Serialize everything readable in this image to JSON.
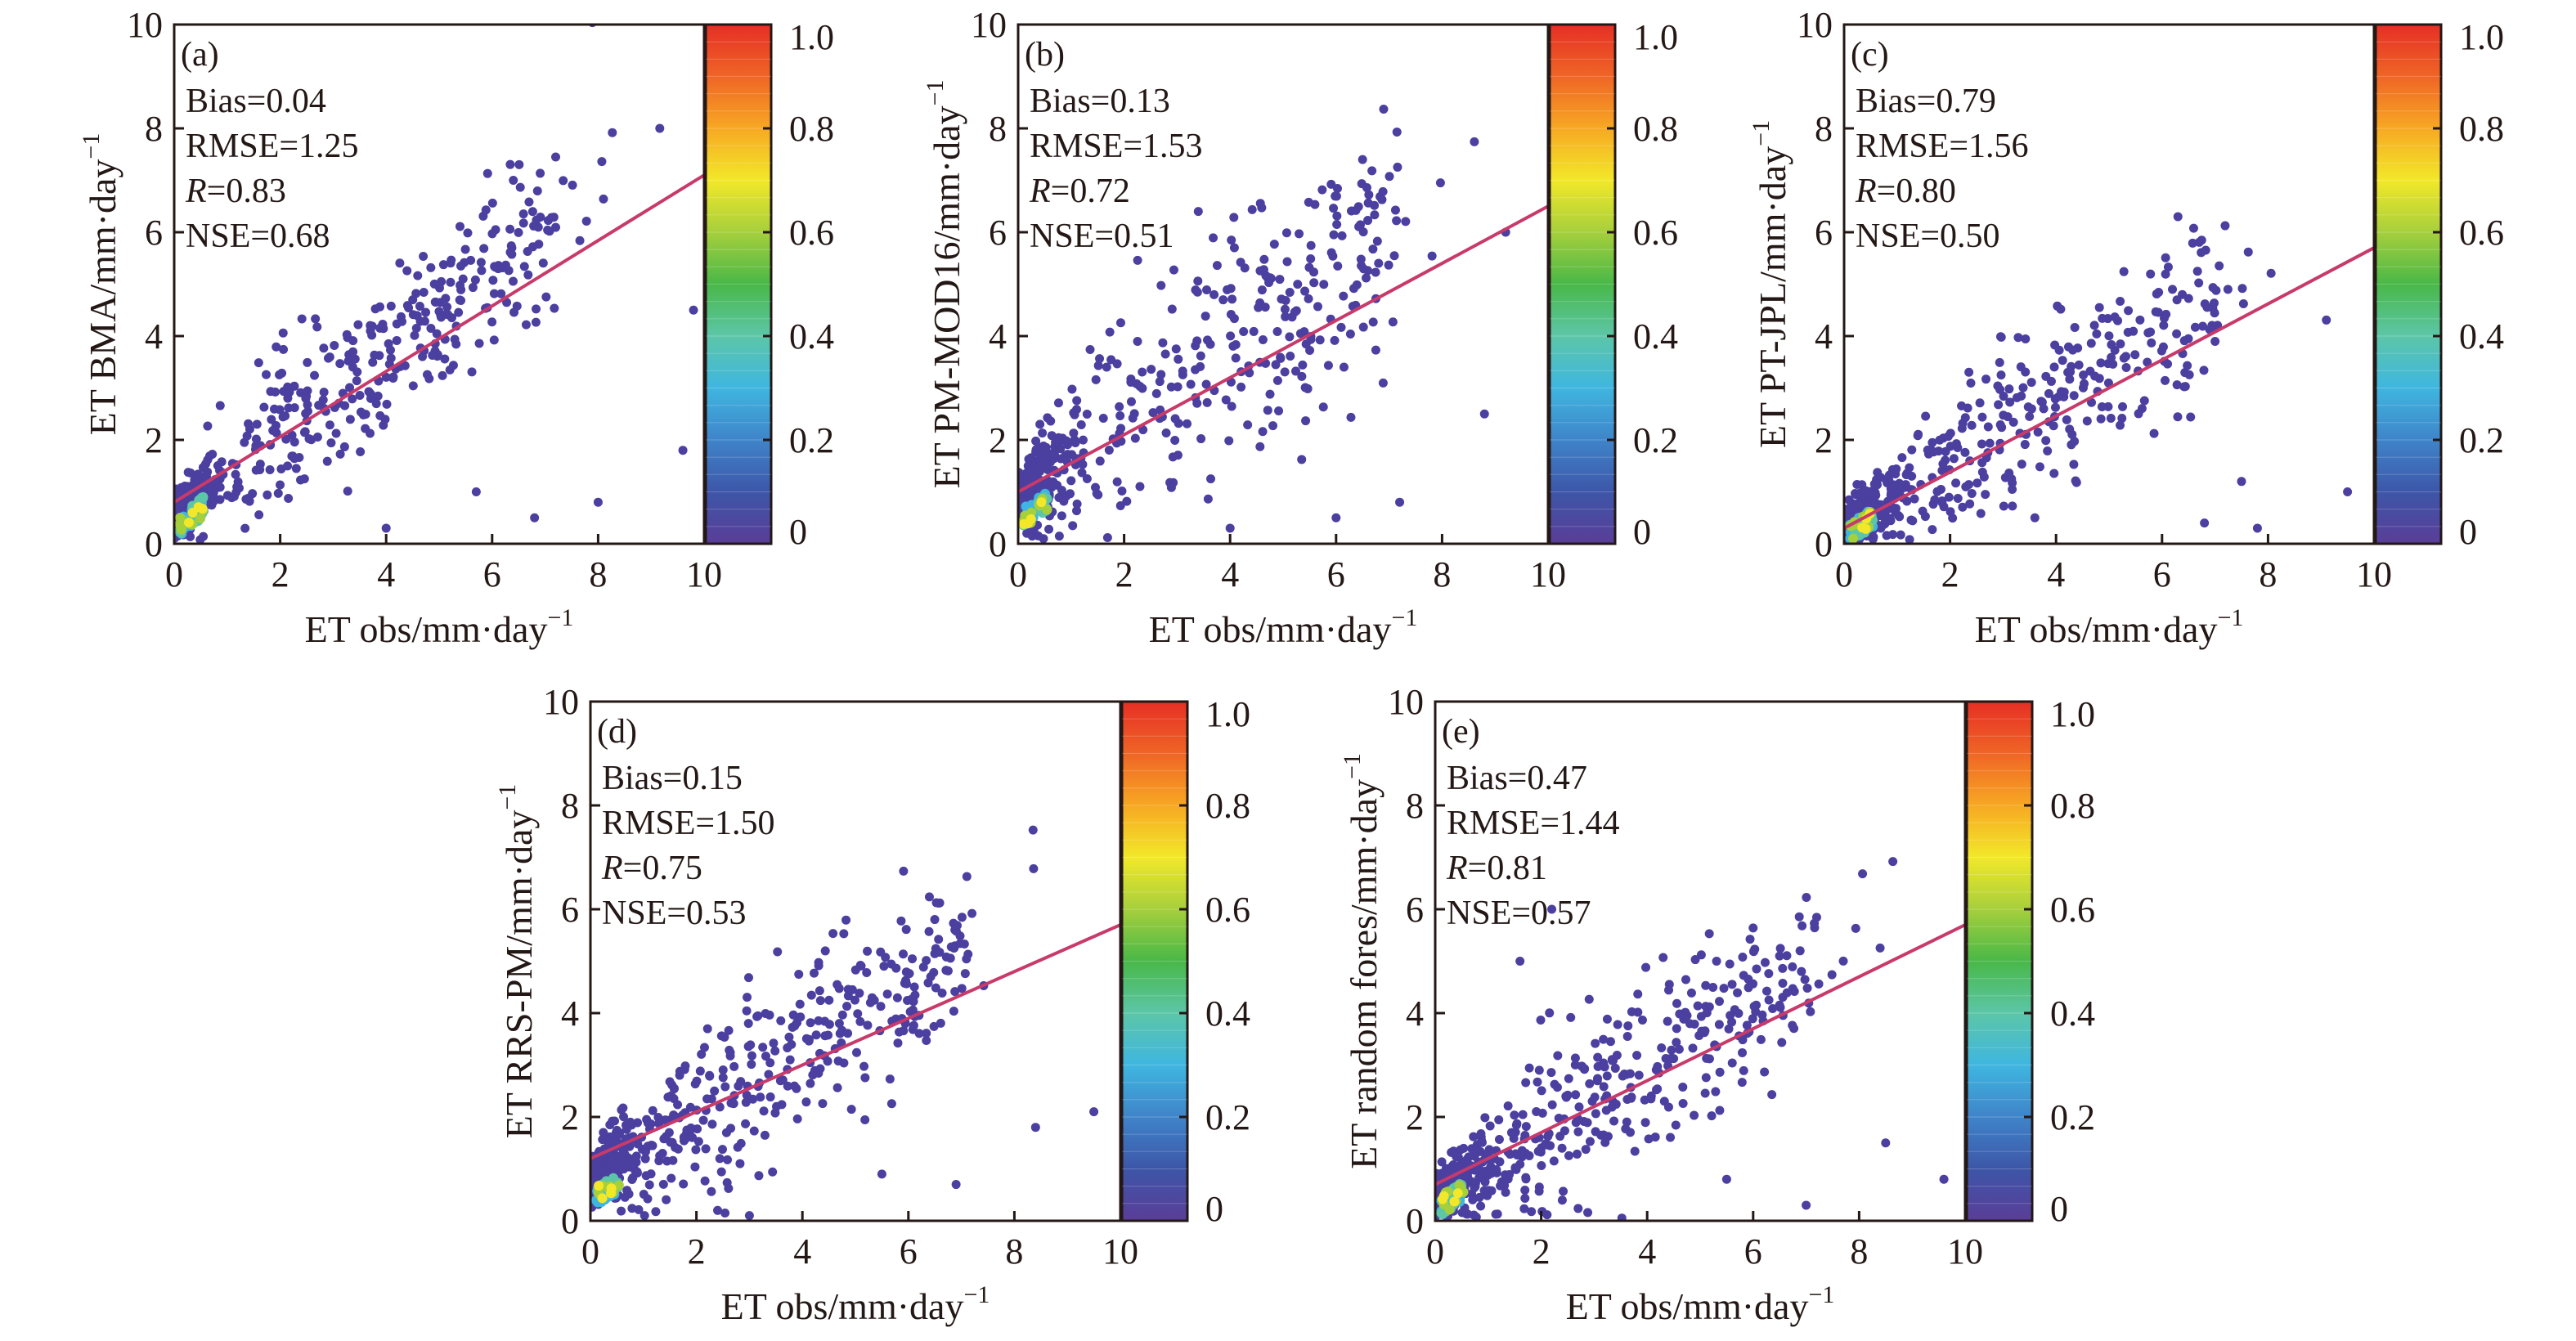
{
  "figure": {
    "x_axis_label": "ET obs/mm·day",
    "unit_exponent": "−1",
    "tick_labels": [
      "0",
      "2",
      "4",
      "6",
      "8",
      "10"
    ],
    "colorbar_labels": [
      "0",
      "0.2",
      "0.4",
      "0.6",
      "0.8",
      "1.0"
    ],
    "colors": {
      "points": "#4b3fa0",
      "fit_line": "#c83a6a",
      "axis": "#231815",
      "colormap": [
        "#5a3d98",
        "#3d56a8",
        "#3f84c9",
        "#3fb6e0",
        "#5cc6a8",
        "#49b848",
        "#a6cf3c",
        "#f2e829",
        "#f7a823",
        "#ef6526",
        "#e62f25"
      ]
    }
  },
  "chart_data": [
    {
      "type": "scatter",
      "panel": "(a)",
      "ylabel": "ET BMA/mm·day",
      "xlabel": "ET obs/mm·day",
      "xlim": [
        0,
        10
      ],
      "ylim": [
        0,
        10
      ],
      "colorbar_range": [
        0,
        1.0
      ],
      "stats": {
        "bias": "Bias=0.04",
        "rmse": "RMSE=1.25",
        "r_sym": "R",
        "r_val": "=0.83",
        "nse": "NSE=0.68"
      },
      "fit_line": {
        "x": [
          0,
          10
        ],
        "y": [
          0.8,
          7.1
        ]
      },
      "point_cloud": {
        "n": 520,
        "slope": 0.8,
        "intercept": 0.55,
        "spread": 0.85,
        "seed": 11
      },
      "outliers": [
        [
          6.4,
          7.0
        ],
        [
          9.6,
          1.8
        ],
        [
          6.8,
          0.5
        ],
        [
          4.0,
          0.3
        ],
        [
          5.7,
          1.0
        ],
        [
          8.0,
          0.8
        ],
        [
          9.8,
          4.5
        ]
      ]
    },
    {
      "type": "scatter",
      "panel": "(b)",
      "ylabel": "ET PM-MOD16/mm·day",
      "xlabel": "ET obs/mm·day",
      "xlim": [
        0,
        10
      ],
      "ylim": [
        0,
        10
      ],
      "colorbar_range": [
        0,
        1.0
      ],
      "stats": {
        "bias": "Bias=0.13",
        "rmse": "RMSE=1.53",
        "r_sym": "R",
        "r_val": "=0.72",
        "nse": "NSE=0.51"
      },
      "fit_line": {
        "x": [
          0,
          10
        ],
        "y": [
          1.0,
          6.5
        ]
      },
      "point_cloud": {
        "n": 480,
        "slope": 0.72,
        "intercept": 0.85,
        "spread": 1.15,
        "seed": 23
      },
      "outliers": [
        [
          6.5,
          7.4
        ],
        [
          4.0,
          0.3
        ],
        [
          6.0,
          0.5
        ],
        [
          7.2,
          0.8
        ],
        [
          8.8,
          2.5
        ],
        [
          9.2,
          6.0
        ],
        [
          3.4,
          6.4
        ]
      ]
    },
    {
      "type": "scatter",
      "panel": "(c)",
      "ylabel": "ET PT-JPL/mm·day",
      "xlabel": "ET obs/mm·day",
      "xlim": [
        0,
        10
      ],
      "ylim": [
        0,
        10
      ],
      "colorbar_range": [
        0,
        1.0
      ],
      "stats": {
        "bias": "Bias=0.79",
        "rmse": "RMSE=1.56",
        "r_sym": "R",
        "r_val": "=0.80",
        "nse": "NSE=0.50"
      },
      "fit_line": {
        "x": [
          0,
          10
        ],
        "y": [
          0.3,
          5.7
        ]
      },
      "point_cloud": {
        "n": 500,
        "slope": 0.6,
        "intercept": 0.3,
        "spread": 0.85,
        "seed": 37
      },
      "outliers": [
        [
          6.3,
          6.3
        ],
        [
          7.8,
          0.3
        ],
        [
          9.5,
          1.0
        ],
        [
          6.8,
          0.4
        ],
        [
          3.6,
          0.5
        ],
        [
          7.5,
          1.2
        ]
      ]
    },
    {
      "type": "scatter",
      "panel": "(d)",
      "ylabel": "ET RRS-PM/mm·day",
      "xlabel": "ET obs/mm·day",
      "xlim": [
        0,
        10
      ],
      "ylim": [
        0,
        10
      ],
      "colorbar_range": [
        0,
        1.0
      ],
      "stats": {
        "bias": "Bias=0.15",
        "rmse": "RMSE=1.50",
        "r_sym": "R",
        "r_val": "=0.75",
        "nse": "NSE=0.53"
      },
      "fit_line": {
        "x": [
          0,
          10
        ],
        "y": [
          1.2,
          5.7
        ]
      },
      "point_cloud": {
        "n": 520,
        "slope": 0.62,
        "intercept": 0.8,
        "spread": 0.9,
        "seed": 53
      },
      "outliers": [
        [
          9.5,
          2.1
        ],
        [
          6.9,
          0.7
        ],
        [
          5.5,
          0.9
        ],
        [
          8.4,
          1.8
        ],
        [
          2.4,
          0.2
        ],
        [
          3.0,
          0.1
        ]
      ]
    },
    {
      "type": "scatter",
      "panel": "(e)",
      "ylabel": "ET random fores/mm·day",
      "xlabel": "ET obs/mm·day",
      "xlim": [
        0,
        10
      ],
      "ylim": [
        0,
        10
      ],
      "colorbar_range": [
        0,
        1.0
      ],
      "stats": {
        "bias": "Bias=0.47",
        "rmse": "RMSE=1.44",
        "r_sym": "R",
        "r_val": "=0.81",
        "nse": "NSE=0.57"
      },
      "fit_line": {
        "x": [
          0,
          10
        ],
        "y": [
          0.7,
          5.7
        ]
      },
      "point_cloud": {
        "n": 520,
        "slope": 0.65,
        "intercept": 0.45,
        "spread": 0.85,
        "seed": 71
      },
      "outliers": [
        [
          9.6,
          0.8
        ],
        [
          7.0,
          0.3
        ],
        [
          5.5,
          0.8
        ],
        [
          8.5,
          1.5
        ],
        [
          2.2,
          6.0
        ],
        [
          1.6,
          5.0
        ]
      ]
    }
  ]
}
